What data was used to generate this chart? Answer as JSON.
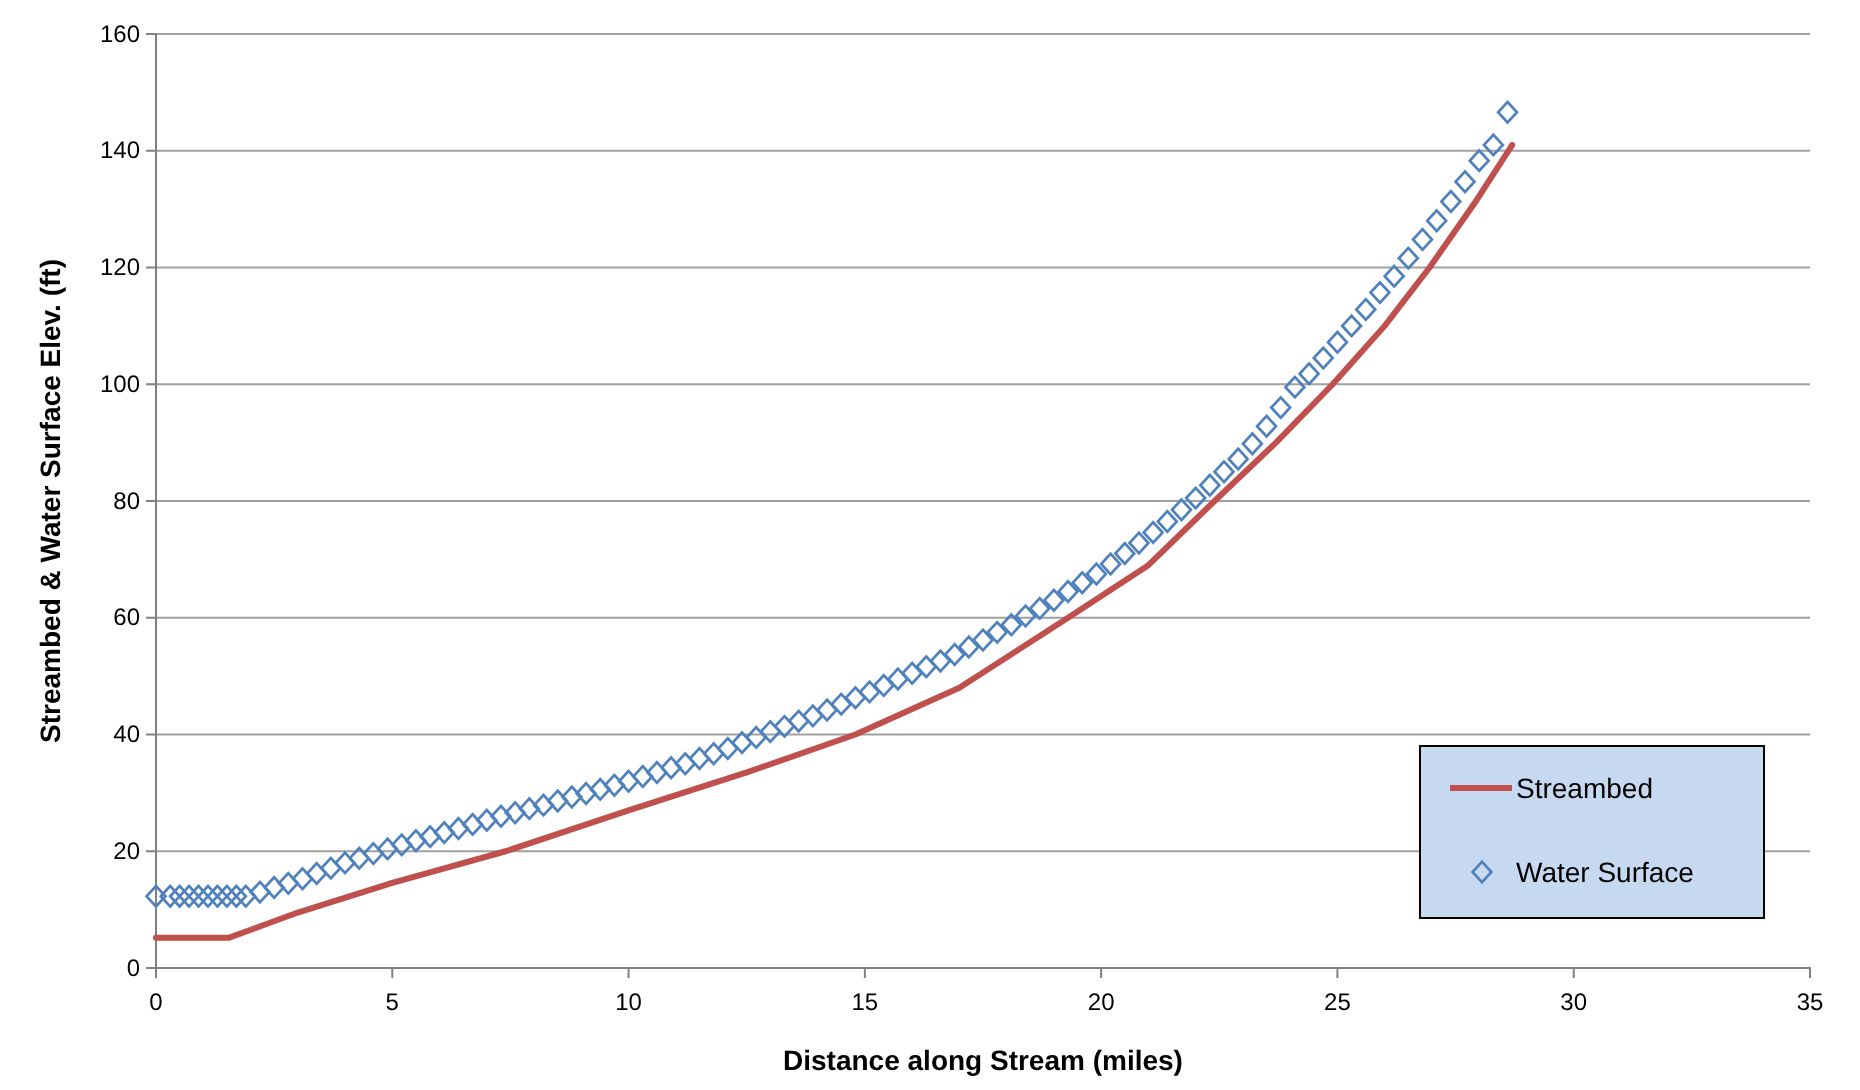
{
  "chart_data": {
    "type": "line",
    "xlabel": "Distance along Stream (miles)",
    "ylabel": "Streambed & Water Surface Elev. (ft)",
    "xlim": [
      0,
      35
    ],
    "xticks": [
      0,
      5,
      10,
      15,
      20,
      25,
      30,
      35
    ],
    "ylim": [
      0,
      160
    ],
    "yticks": [
      0,
      20,
      40,
      60,
      80,
      100,
      120,
      140,
      160
    ],
    "grid": "y",
    "legend": "bottom right",
    "series": [
      {
        "name": "Streambed",
        "color": "#c0504d",
        "marker": "none",
        "line_style": "solid",
        "x": [
          0,
          1.55,
          3,
          5,
          7.4,
          10,
          12.5,
          14.8,
          17,
          19.3,
          21,
          22.4,
          23.7,
          24.9,
          26,
          26.95,
          27.9,
          28.7
        ],
        "values": [
          5.2,
          5.2,
          9.5,
          14.6,
          20,
          27,
          33.5,
          40,
          48,
          60,
          69,
          80,
          90,
          100,
          110,
          120,
          131,
          141
        ]
      },
      {
        "name": "Water Surface",
        "type": "scatter",
        "color": "#4f81bd",
        "marker": "diamond",
        "x": [
          0,
          0.3,
          0.5,
          0.7,
          0.9,
          1.1,
          1.3,
          1.5,
          1.7,
          1.9,
          2.2,
          2.5,
          2.8,
          3.1,
          3.4,
          3.7,
          4.0,
          4.3,
          4.6,
          4.9,
          5.2,
          5.5,
          5.8,
          6.1,
          6.4,
          6.7,
          7.0,
          7.3,
          7.6,
          7.9,
          8.2,
          8.5,
          8.8,
          9.1,
          9.4,
          9.7,
          10.0,
          10.3,
          10.6,
          10.9,
          11.2,
          11.5,
          11.8,
          12.1,
          12.4,
          12.7,
          13.0,
          13.3,
          13.6,
          13.9,
          14.2,
          14.5,
          14.8,
          15.1,
          15.4,
          15.7,
          16.0,
          16.3,
          16.6,
          16.9,
          17.2,
          17.5,
          17.8,
          18.1,
          18.4,
          18.7,
          19.0,
          19.3,
          19.6,
          19.9,
          20.2,
          20.5,
          20.8,
          21.1,
          21.4,
          21.7,
          22.0,
          22.3,
          22.6,
          22.9,
          23.2,
          23.5,
          23.8,
          24.1,
          24.4,
          24.7,
          25.0,
          25.3,
          25.6,
          25.9,
          26.2,
          26.5,
          26.8,
          27.1,
          27.4,
          27.7,
          28.0,
          28.3,
          28.6
        ],
        "values": [
          12.3,
          12.3,
          12.3,
          12.3,
          12.3,
          12.3,
          12.3,
          12.3,
          12.3,
          12.3,
          13.0,
          13.8,
          14.5,
          15.3,
          16.2,
          17.1,
          18.0,
          18.8,
          19.6,
          20.4,
          21.1,
          21.8,
          22.5,
          23.2,
          23.9,
          24.6,
          25.3,
          26.0,
          26.6,
          27.3,
          27.9,
          28.6,
          29.3,
          29.9,
          30.6,
          31.3,
          32.0,
          32.8,
          33.5,
          34.3,
          35.0,
          35.9,
          36.7,
          37.6,
          38.6,
          39.5,
          40.5,
          41.4,
          42.3,
          43.2,
          44.2,
          45.2,
          46.3,
          47.3,
          48.4,
          49.5,
          50.5,
          51.6,
          52.6,
          53.7,
          55.0,
          56.2,
          57.5,
          58.8,
          60.3,
          61.6,
          63.0,
          64.5,
          66.0,
          67.5,
          69.2,
          71.0,
          72.8,
          74.6,
          76.5,
          78.5,
          80.5,
          82.7,
          85.0,
          87.2,
          89.8,
          92.8,
          96.0,
          99.5,
          101.8,
          104.5,
          107.2,
          110.0,
          112.8,
          115.7,
          118.5,
          121.6,
          124.8,
          128.0,
          131.3,
          134.7,
          138.3,
          141.0,
          146.6
        ]
      }
    ]
  }
}
